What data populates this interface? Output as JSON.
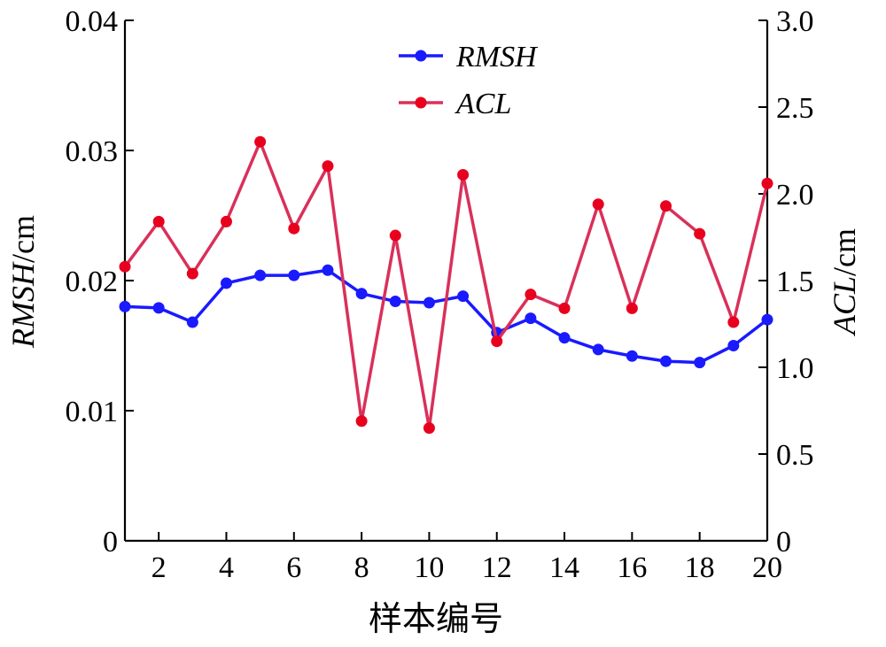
{
  "chart_data": {
    "type": "line",
    "x": [
      1,
      2,
      3,
      4,
      5,
      6,
      7,
      8,
      9,
      10,
      11,
      12,
      13,
      14,
      15,
      16,
      17,
      18,
      19,
      20
    ],
    "xlim": [
      1,
      20
    ],
    "xticks": [
      2,
      4,
      6,
      8,
      10,
      12,
      14,
      16,
      18,
      20
    ],
    "xtick_labels": [
      "2",
      "4",
      "6",
      "8",
      "10",
      "12",
      "14",
      "16",
      "18",
      "20"
    ],
    "xlabel": "样本编号",
    "ylabel_left": {
      "var": "RMSH",
      "unit": "/cm"
    },
    "ylabel_right": {
      "var": "ACL",
      "unit": "/cm"
    },
    "ylim_left": [
      0,
      0.04
    ],
    "yticks_left": [
      0,
      0.01,
      0.02,
      0.03,
      0.04
    ],
    "ytick_labels_left": [
      "0",
      "0.01",
      "0.02",
      "0.03",
      "0.04"
    ],
    "ylim_right": [
      0,
      3.0
    ],
    "yticks_right": [
      0,
      0.5,
      1.0,
      1.5,
      2.0,
      2.5,
      3.0
    ],
    "ytick_labels_right": [
      "0",
      "0.5",
      "1.0",
      "1.5",
      "2.0",
      "2.5",
      "3.0"
    ],
    "grid": false,
    "legend_position": "top-center",
    "series": [
      {
        "name": "RMSH",
        "axis": "left",
        "color": "#1a1aff",
        "values": [
          0.018,
          0.0179,
          0.0168,
          0.0198,
          0.0204,
          0.0204,
          0.0208,
          0.019,
          0.0184,
          0.0183,
          0.0188,
          0.016,
          0.0171,
          0.0156,
          0.0147,
          0.0142,
          0.0138,
          0.0137,
          0.015,
          0.017
        ]
      },
      {
        "name": "ACL",
        "axis": "right",
        "color": "#d9305a",
        "marker_color": "#e8001e",
        "values": [
          1.58,
          1.84,
          1.54,
          1.84,
          2.3,
          1.8,
          2.16,
          0.69,
          1.76,
          0.65,
          2.11,
          1.15,
          1.42,
          1.34,
          1.94,
          1.34,
          1.93,
          1.77,
          1.26,
          2.06
        ]
      }
    ]
  }
}
